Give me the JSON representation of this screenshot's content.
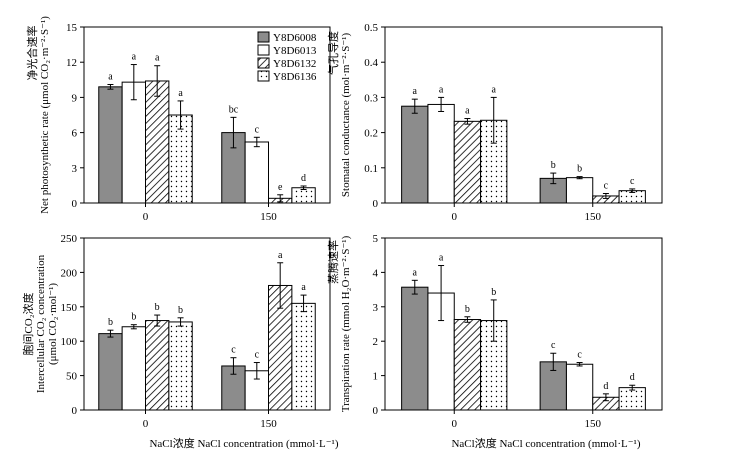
{
  "legend": {
    "entries": [
      {
        "name": "Y8D6008",
        "pattern": "solid-gray"
      },
      {
        "name": "Y8D6013",
        "pattern": "white"
      },
      {
        "name": "Y8D6132",
        "pattern": "hatch"
      },
      {
        "name": "Y8D6136",
        "pattern": "dots"
      }
    ],
    "placement": "top-right of first panel"
  },
  "colors": {
    "solid": "#8c8c8c",
    "edge": "#000000",
    "background": "#ffffff"
  },
  "shared_xlabel": "NaCl浓度 NaCl concentration (mmol·L⁻¹)",
  "chart_data": [
    {
      "type": "bar",
      "id": "net-photosynthetic-rate",
      "categories": [
        "0",
        "150"
      ],
      "ylabel_cn": "净光合速率",
      "ylabel_en": "Net photosynthetic rate (μmol CO₂·m⁻²·S⁻¹)",
      "ylim": [
        0,
        15
      ],
      "yticks": [
        0,
        3,
        6,
        9,
        12,
        15
      ],
      "ytick_labels": [
        "0",
        "3",
        "6",
        "9",
        "12",
        "15"
      ],
      "series": [
        {
          "name": "Y8D6008",
          "values": [
            9.9,
            6.0
          ],
          "errors": [
            0.2,
            1.3
          ],
          "letters": [
            "a",
            "bc"
          ]
        },
        {
          "name": "Y8D6013",
          "values": [
            10.3,
            5.2
          ],
          "errors": [
            1.5,
            0.4
          ],
          "letters": [
            "a",
            "c"
          ]
        },
        {
          "name": "Y8D6132",
          "values": [
            10.4,
            0.4
          ],
          "errors": [
            1.3,
            0.3
          ],
          "letters": [
            "a",
            "e"
          ]
        },
        {
          "name": "Y8D6136",
          "values": [
            7.5,
            1.3
          ],
          "errors": [
            1.2,
            0.15
          ],
          "letters": [
            "a",
            "d"
          ]
        }
      ]
    },
    {
      "type": "bar",
      "id": "stomatal-conductance",
      "categories": [
        "0",
        "150"
      ],
      "ylabel_cn": "气孔导度",
      "ylabel_en": "Stomatal conductance (mol·m⁻²·S⁻¹)",
      "ylim": [
        0,
        0.5
      ],
      "yticks": [
        0,
        0.1,
        0.2,
        0.3,
        0.4,
        0.5
      ],
      "ytick_labels": [
        "0",
        "0.1",
        "0.2",
        "0.3",
        "0.4",
        "0.5"
      ],
      "series": [
        {
          "name": "Y8D6008",
          "values": [
            0.275,
            0.07
          ],
          "errors": [
            0.02,
            0.015
          ],
          "letters": [
            "a",
            "b"
          ]
        },
        {
          "name": "Y8D6013",
          "values": [
            0.28,
            0.072
          ],
          "errors": [
            0.02,
            0.003
          ],
          "letters": [
            "a",
            "b"
          ]
        },
        {
          "name": "Y8D6132",
          "values": [
            0.232,
            0.02
          ],
          "errors": [
            0.008,
            0.007
          ],
          "letters": [
            "a",
            "c"
          ]
        },
        {
          "name": "Y8D6136",
          "values": [
            0.235,
            0.035
          ],
          "errors": [
            0.065,
            0.005
          ],
          "letters": [
            "a",
            "c"
          ]
        }
      ]
    },
    {
      "type": "bar",
      "id": "intercellular-co2",
      "categories": [
        "0",
        "150"
      ],
      "ylabel_cn": "胞间CO₂浓度",
      "ylabel_en": "Intercellular CO₂ concentration",
      "ylabel_unit": "(μmol CO₂·mol⁻¹)",
      "ylim": [
        0,
        250
      ],
      "yticks": [
        0,
        50,
        100,
        150,
        200,
        250
      ],
      "ytick_labels": [
        "0",
        "50",
        "100",
        "150",
        "200",
        "250"
      ],
      "series": [
        {
          "name": "Y8D6008",
          "values": [
            111,
            64
          ],
          "errors": [
            5,
            12
          ],
          "letters": [
            "b",
            "c"
          ]
        },
        {
          "name": "Y8D6013",
          "values": [
            121,
            57
          ],
          "errors": [
            3,
            12
          ],
          "letters": [
            "b",
            "c"
          ]
        },
        {
          "name": "Y8D6132",
          "values": [
            130,
            181
          ],
          "errors": [
            8,
            33
          ],
          "letters": [
            "b",
            "a"
          ]
        },
        {
          "name": "Y8D6136",
          "values": [
            128,
            155
          ],
          "errors": [
            6,
            12
          ],
          "letters": [
            "b",
            "a"
          ]
        }
      ]
    },
    {
      "type": "bar",
      "id": "transpiration-rate",
      "categories": [
        "0",
        "150"
      ],
      "ylabel_cn": "蒸腾速率",
      "ylabel_en": "Transpiration rate (mmol H₂O·m⁻²·S⁻¹)",
      "ylim": [
        0,
        5
      ],
      "yticks": [
        0,
        1,
        2,
        3,
        4,
        5
      ],
      "ytick_labels": [
        "0",
        "1",
        "2",
        "3",
        "4",
        "5"
      ],
      "series": [
        {
          "name": "Y8D6008",
          "values": [
            3.57,
            1.4
          ],
          "errors": [
            0.2,
            0.25
          ],
          "letters": [
            "a",
            "c"
          ]
        },
        {
          "name": "Y8D6013",
          "values": [
            3.4,
            1.33
          ],
          "errors": [
            0.8,
            0.05
          ],
          "letters": [
            "a",
            "c"
          ]
        },
        {
          "name": "Y8D6132",
          "values": [
            2.63,
            0.37
          ],
          "errors": [
            0.08,
            0.1
          ],
          "letters": [
            "b",
            "d"
          ]
        },
        {
          "name": "Y8D6136",
          "values": [
            2.6,
            0.65
          ],
          "errors": [
            0.6,
            0.07
          ],
          "letters": [
            "b",
            "d"
          ]
        }
      ]
    }
  ]
}
